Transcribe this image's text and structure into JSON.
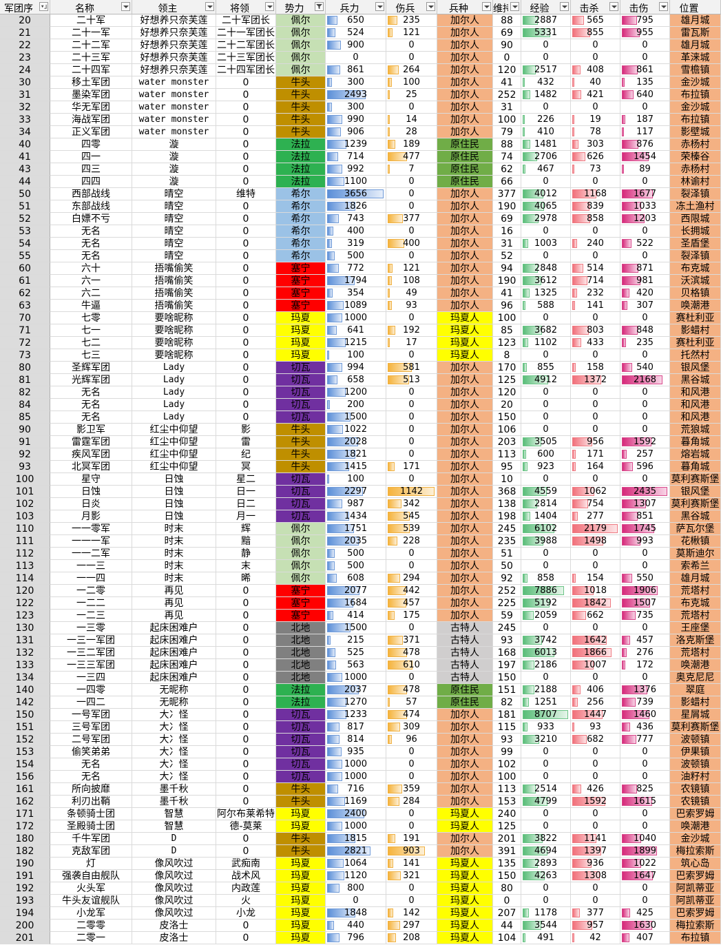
{
  "headers": [
    {
      "label": "军团序",
      "filter": "sort-asc-icon"
    },
    {
      "label": "名称",
      "filter": "chevron-down-icon"
    },
    {
      "label": "领主",
      "filter": "chevron-down-icon"
    },
    {
      "label": "将领",
      "filter": "chevron-down-icon"
    },
    {
      "label": "势力",
      "filter": "filter-funnel-icon"
    },
    {
      "label": "兵力",
      "filter": "chevron-down-icon"
    },
    {
      "label": "伤兵",
      "filter": "chevron-down-icon"
    },
    {
      "label": "兵种",
      "filter": "chevron-down-icon"
    },
    {
      "label": "维持",
      "filter": "chevron-down-icon"
    },
    {
      "label": "经验",
      "filter": "chevron-down-icon"
    },
    {
      "label": "击杀",
      "filter": "chevron-down-icon"
    },
    {
      "label": "击伤",
      "filter": "chevron-down-icon"
    },
    {
      "label": "位置",
      "filter": ""
    }
  ],
  "faction_colors": {
    "佩尔": "#c6e0b4",
    "牛头": "#bf8f00",
    "法拉": "#2eb151",
    "希尔": "#9bc2e6",
    "塞宁": "#ff0000",
    "玛夏": "#ffff00",
    "切瓦": "#7030a0",
    "北地": "#808080"
  },
  "troop_colors": {
    "加尔人": "#f4b183",
    "原住民": "#70ad47",
    "玛夏人": "#ffff00",
    "古特人": "#d0cece"
  },
  "location_color": "#f4b183",
  "bar_max": {
    "troops": 3656,
    "wounded": 1142,
    "exp": 8707,
    "kills": 2179,
    "hits": 2435
  },
  "rows": [
    [
      "20",
      "二十军",
      "好想养只奈芙莲",
      "二十军团长",
      "佩尔",
      "650",
      "235",
      "加尔人",
      "88",
      "2887",
      "565",
      "795",
      "雄月城"
    ],
    [
      "21",
      "二十一军",
      "好想养只奈芙莲",
      "二十一军团长",
      "佩尔",
      "524",
      "121",
      "加尔人",
      "69",
      "5331",
      "855",
      "955",
      "雷瓦斯"
    ],
    [
      "22",
      "二十二军",
      "好想养只奈芙莲",
      "二十二军团长",
      "佩尔",
      "900",
      "0",
      "加尔人",
      "90",
      "0",
      "0",
      "0",
      "雄月城"
    ],
    [
      "23",
      "二十三军",
      "好想养只奈芙莲",
      "二十三军团长",
      "佩尔",
      "0",
      "0",
      "加尔人",
      "0",
      "0",
      "0",
      "0",
      "革涞城"
    ],
    [
      "24",
      "二十四军",
      "好想养只奈芙莲",
      "二十四军团长",
      "佩尔",
      "861",
      "264",
      "加尔人",
      "120",
      "2517",
      "408",
      "861",
      "雪檐镇"
    ],
    [
      "30",
      "移土军团",
      "water monster",
      "0",
      "牛头",
      "300",
      "100",
      "加尔人",
      "41",
      "432",
      "40",
      "135",
      "金沙城"
    ],
    [
      "31",
      "墨染军团",
      "water monster",
      "0",
      "牛头",
      "2493",
      "25",
      "加尔人",
      "252",
      "1482",
      "421",
      "640",
      "布拉镇"
    ],
    [
      "32",
      "华无军团",
      "water monster",
      "0",
      "牛头",
      "300",
      "0",
      "加尔人",
      "31",
      "0",
      "0",
      "0",
      "金沙城"
    ],
    [
      "33",
      "海战军团",
      "water monster",
      "0",
      "牛头",
      "990",
      "14",
      "加尔人",
      "100",
      "226",
      "19",
      "187",
      "布拉镇"
    ],
    [
      "34",
      "正义军团",
      "water monster",
      "0",
      "牛头",
      "906",
      "28",
      "加尔人",
      "79",
      "410",
      "78",
      "117",
      "影壁城"
    ],
    [
      "40",
      "四零",
      "漩",
      "0",
      "法拉",
      "1239",
      "189",
      "原住民",
      "88",
      "1481",
      "303",
      "876",
      "赤杨村"
    ],
    [
      "41",
      "四一",
      "漩",
      "0",
      "法拉",
      "714",
      "477",
      "原住民",
      "74",
      "2706",
      "626",
      "1454",
      "荣榛谷"
    ],
    [
      "43",
      "四三",
      "漩",
      "0",
      "法拉",
      "992",
      "7",
      "原住民",
      "62",
      "467",
      "73",
      "89",
      "赤杨村"
    ],
    [
      "44",
      "四四",
      "漩",
      "0",
      "法拉",
      "1100",
      "0",
      "原住民",
      "66",
      "0",
      "0",
      "0",
      "林谕村"
    ],
    [
      "50",
      "西部战线",
      "晴空",
      "维特",
      "希尔",
      "3656",
      "0",
      "加尔人",
      "377",
      "4012",
      "1168",
      "1677",
      "裂泽镇"
    ],
    [
      "51",
      "东部战线",
      "晴空",
      "0",
      "希尔",
      "1826",
      "0",
      "加尔人",
      "190",
      "4065",
      "839",
      "1033",
      "冻土渔村"
    ],
    [
      "52",
      "白嫖不亏",
      "晴空",
      "0",
      "希尔",
      "743",
      "377",
      "加尔人",
      "69",
      "2978",
      "858",
      "1203",
      "西限城"
    ],
    [
      "53",
      "无名",
      "晴空",
      "0",
      "希尔",
      "400",
      "0",
      "加尔人",
      "16",
      "0",
      "0",
      "0",
      "长拥城"
    ],
    [
      "54",
      "无名",
      "晴空",
      "0",
      "希尔",
      "319",
      "400",
      "加尔人",
      "31",
      "1003",
      "240",
      "522",
      "圣盾堡"
    ],
    [
      "55",
      "无名",
      "晴空",
      "0",
      "希尔",
      "500",
      "0",
      "加尔人",
      "52",
      "0",
      "0",
      "0",
      "裂泽镇"
    ],
    [
      "60",
      "六十",
      "捂嘴偷笑",
      "0",
      "塞宁",
      "772",
      "121",
      "加尔人",
      "94",
      "2848",
      "514",
      "871",
      "布克城"
    ],
    [
      "61",
      "六一",
      "捂嘴偷笑",
      "0",
      "塞宁",
      "1794",
      "108",
      "加尔人",
      "190",
      "3612",
      "714",
      "981",
      "沃滨城"
    ],
    [
      "62",
      "六二",
      "捂嘴偷笑",
      "0",
      "塞宁",
      "354",
      "49",
      "加尔人",
      "41",
      "1325",
      "232",
      "420",
      "贝格镇"
    ],
    [
      "63",
      "牛逼",
      "捂嘴偷笑",
      "0",
      "塞宁",
      "1089",
      "93",
      "加尔人",
      "96",
      "588",
      "141",
      "307",
      "唤潮港"
    ],
    [
      "70",
      "七零",
      "要啥昵称",
      "0",
      "玛夏",
      "1000",
      "0",
      "玛夏人",
      "100",
      "0",
      "0",
      "0",
      "赛杜利亚"
    ],
    [
      "71",
      "七一",
      "要啥昵称",
      "0",
      "玛夏",
      "641",
      "192",
      "玛夏人",
      "85",
      "3682",
      "803",
      "848",
      "影蜡村"
    ],
    [
      "72",
      "七二",
      "要啥昵称",
      "0",
      "玛夏",
      "1215",
      "17",
      "玛夏人",
      "123",
      "1102",
      "433",
      "235",
      "赛杜利亚"
    ],
    [
      "73",
      "七三",
      "要啥昵称",
      "0",
      "玛夏",
      "100",
      "0",
      "玛夏人",
      "8",
      "0",
      "0",
      "0",
      "托然村"
    ],
    [
      "80",
      "圣辉军团",
      "Lady",
      "0",
      "切瓦",
      "994",
      "581",
      "加尔人",
      "170",
      "855",
      "158",
      "540",
      "银风堡"
    ],
    [
      "81",
      "光辉军团",
      "Lady",
      "0",
      "切瓦",
      "658",
      "513",
      "加尔人",
      "125",
      "4912",
      "1372",
      "2168",
      "黑谷城"
    ],
    [
      "82",
      "无名",
      "Lady",
      "0",
      "切瓦",
      "1200",
      "0",
      "加尔人",
      "120",
      "0",
      "0",
      "0",
      "和风港"
    ],
    [
      "84",
      "无名",
      "Lady",
      "0",
      "切瓦",
      "200",
      "0",
      "加尔人",
      "20",
      "0",
      "0",
      "0",
      "和风港"
    ],
    [
      "85",
      "无名",
      "Lady",
      "0",
      "切瓦",
      "1500",
      "0",
      "加尔人",
      "150",
      "0",
      "0",
      "0",
      "和风港"
    ],
    [
      "90",
      "影卫军",
      "红尘中仰望",
      "影",
      "牛头",
      "1022",
      "0",
      "加尔人",
      "106",
      "0",
      "0",
      "0",
      "荒狼城"
    ],
    [
      "91",
      "雷霆军团",
      "红尘中仰望",
      "雷",
      "牛头",
      "2028",
      "0",
      "加尔人",
      "203",
      "3505",
      "956",
      "1592",
      "暮角城"
    ],
    [
      "92",
      "疾风军团",
      "红尘中仰望",
      "纪",
      "牛头",
      "1821",
      "0",
      "加尔人",
      "113",
      "600",
      "171",
      "257",
      "熔岩城"
    ],
    [
      "93",
      "北冥军团",
      "红尘中仰望",
      "冥",
      "牛头",
      "1415",
      "171",
      "加尔人",
      "95",
      "923",
      "164",
      "596",
      "暮角城"
    ],
    [
      "100",
      "星守",
      "日蚀",
      "星二",
      "切瓦",
      "100",
      "0",
      "加尔人",
      "10",
      "0",
      "0",
      "0",
      "莫利赛斯堡"
    ],
    [
      "101",
      "日蚀",
      "日蚀",
      "日一",
      "切瓦",
      "2297",
      "1142",
      "加尔人",
      "368",
      "4559",
      "1062",
      "2435",
      "银风堡"
    ],
    [
      "102",
      "日炎",
      "日蚀",
      "日二",
      "切瓦",
      "987",
      "342",
      "加尔人",
      "138",
      "2814",
      "754",
      "1307",
      "莫利赛斯堡"
    ],
    [
      "103",
      "月影",
      "日蚀",
      "月一",
      "切瓦",
      "1434",
      "545",
      "加尔人",
      "198",
      "1404",
      "277",
      "851",
      "黑谷城"
    ],
    [
      "110",
      "一一零军",
      "时末",
      "辉",
      "佩尔",
      "1751",
      "539",
      "加尔人",
      "245",
      "6102",
      "2179",
      "1745",
      "萨瓦尔堡"
    ],
    [
      "111",
      "一一一军",
      "时末",
      "黯",
      "佩尔",
      "2035",
      "228",
      "加尔人",
      "235",
      "3988",
      "1498",
      "993",
      "花楸镇"
    ],
    [
      "112",
      "一一二军",
      "时末",
      "静",
      "佩尔",
      "500",
      "0",
      "加尔人",
      "51",
      "0",
      "0",
      "0",
      "莫斯迪尔"
    ],
    [
      "113",
      "一一三",
      "时末",
      "末",
      "佩尔",
      "500",
      "0",
      "加尔人",
      "50",
      "0",
      "0",
      "0",
      "索希兰"
    ],
    [
      "114",
      "一一四",
      "时末",
      "晞",
      "佩尔",
      "608",
      "294",
      "加尔人",
      "92",
      "858",
      "154",
      "550",
      "雄月城"
    ],
    [
      "120",
      "一二零",
      "再见",
      "0",
      "塞宁",
      "2077",
      "442",
      "加尔人",
      "252",
      "7886",
      "1018",
      "1906",
      "荒塔村"
    ],
    [
      "122",
      "一二二",
      "再见",
      "0",
      "塞宁",
      "1684",
      "457",
      "加尔人",
      "225",
      "5192",
      "1842",
      "1507",
      "布克城"
    ],
    [
      "123",
      "一二三",
      "再见",
      "0",
      "塞宁",
      "414",
      "175",
      "加尔人",
      "59",
      "2059",
      "662",
      "735",
      "荒塔村"
    ],
    [
      "130",
      "一三零",
      "起床困难户",
      "0",
      "北地",
      "1500",
      "0",
      "古特人",
      "245",
      "0",
      "0",
      "0",
      "王座堡"
    ],
    [
      "131",
      "一三一军团",
      "起床困难户",
      "0",
      "北地",
      "215",
      "371",
      "古特人",
      "93",
      "3742",
      "1642",
      "457",
      "洛克斯堡"
    ],
    [
      "132",
      "一三二军团",
      "起床困难户",
      "0",
      "北地",
      "525",
      "478",
      "古特人",
      "168",
      "6013",
      "1866",
      "276",
      "荒塔村"
    ],
    [
      "133",
      "一三三军团",
      "起床困难户",
      "0",
      "北地",
      "563",
      "610",
      "古特人",
      "197",
      "2186",
      "1007",
      "172",
      "唤潮港"
    ],
    [
      "134",
      "一三四",
      "起床困难户",
      "0",
      "北地",
      "1000",
      "0",
      "古特人",
      "150",
      "0",
      "0",
      "0",
      "奥克尼尼"
    ],
    [
      "140",
      "一四零",
      "无昵称",
      "0",
      "法拉",
      "2037",
      "478",
      "原住民",
      "151",
      "2188",
      "406",
      "1376",
      "翠庭"
    ],
    [
      "142",
      "一四二",
      "无昵称",
      "0",
      "法拉",
      "1270",
      "57",
      "原住民",
      "82",
      "1251",
      "256",
      "739",
      "影蜡村"
    ],
    [
      "150",
      "一号军团",
      "大冫怪",
      "0",
      "切瓦",
      "1233",
      "474",
      "加尔人",
      "181",
      "8707",
      "1447",
      "1460",
      "星屑城"
    ],
    [
      "151",
      "三号军团",
      "大冫怪",
      "0",
      "切瓦",
      "817",
      "309",
      "加尔人",
      "115",
      "933",
      "93",
      "436",
      "莫利赛斯堡"
    ],
    [
      "152",
      "二号军团",
      "大冫怪",
      "0",
      "切瓦",
      "814",
      "96",
      "加尔人",
      "93",
      "3210",
      "682",
      "777",
      "波顿镇"
    ],
    [
      "153",
      "偷笑弟弟",
      "大冫怪",
      "0",
      "切瓦",
      "935",
      "0",
      "加尔人",
      "99",
      "0",
      "0",
      "0",
      "伊果镇"
    ],
    [
      "154",
      "无名",
      "大冫怪",
      "0",
      "切瓦",
      "1000",
      "0",
      "加尔人",
      "102",
      "0",
      "0",
      "0",
      "波顿镇"
    ],
    [
      "156",
      "无名",
      "大冫怪",
      "0",
      "切瓦",
      "1000",
      "0",
      "加尔人",
      "100",
      "0",
      "0",
      "0",
      "油籽村"
    ],
    [
      "161",
      "所向披靡",
      "墨千秋",
      "0",
      "牛头",
      "716",
      "359",
      "加尔人",
      "113",
      "2514",
      "426",
      "825",
      "农镜镇"
    ],
    [
      "162",
      "利刃出鞘",
      "墨千秋",
      "0",
      "牛头",
      "1169",
      "284",
      "加尔人",
      "153",
      "4799",
      "1592",
      "1615",
      "农镜镇"
    ],
    [
      "171",
      "条顿骑士团",
      "智慧",
      "阿尔布莱希特",
      "玛夏",
      "2400",
      "0",
      "玛夏人",
      "240",
      "0",
      "0",
      "0",
      "巴索罗姆"
    ],
    [
      "172",
      "圣殿骑士团",
      "智慧",
      "德-莫莱",
      "玛夏",
      "1000",
      "0",
      "玛夏人",
      "125",
      "0",
      "0",
      "0",
      "唤潮港"
    ],
    [
      "180",
      "千牛军团",
      "D",
      "0",
      "牛头",
      "1815",
      "191",
      "加尔人",
      "201",
      "3822",
      "1141",
      "1040",
      "金沙城"
    ],
    [
      "182",
      "克敌军团",
      "D",
      "0",
      "牛头",
      "2821",
      "903",
      "加尔人",
      "391",
      "4694",
      "1397",
      "1899",
      "梅拉索斯"
    ],
    [
      "190",
      "灯",
      "像风吹过",
      "武痴南",
      "玛夏",
      "1064",
      "141",
      "玛夏人",
      "135",
      "2893",
      "936",
      "1022",
      "筑心岛"
    ],
    [
      "191",
      "强袭自由舰队",
      "像风吹过",
      "战术风",
      "玛夏",
      "1120",
      "321",
      "玛夏人",
      "150",
      "4263",
      "1308",
      "1647",
      "巴索罗姆"
    ],
    [
      "192",
      "火头军",
      "像风吹过",
      "内政莲",
      "玛夏",
      "800",
      "0",
      "玛夏人",
      "80",
      "0",
      "0",
      "0",
      "阿凯蒂亚"
    ],
    [
      "193",
      "牛头友谊舰队",
      "像风吹过",
      "火",
      "玛夏",
      "0",
      "0",
      "玛夏人",
      "0",
      "0",
      "0",
      "0",
      "阿凯蒂亚"
    ],
    [
      "194",
      "小龙军",
      "像风吹过",
      "小龙",
      "玛夏",
      "1848",
      "142",
      "玛夏人",
      "207",
      "1178",
      "377",
      "425",
      "巴索罗姆"
    ],
    [
      "200",
      "二零零",
      "皮洛士",
      "0",
      "玛夏",
      "440",
      "297",
      "玛夏人",
      "44",
      "3544",
      "957",
      "1630",
      "梅拉索斯"
    ],
    [
      "201",
      "二零一",
      "皮洛士",
      "0",
      "玛夏",
      "796",
      "208",
      "玛夏人",
      "104",
      "491",
      "42",
      "407",
      "布拉镇"
    ]
  ]
}
